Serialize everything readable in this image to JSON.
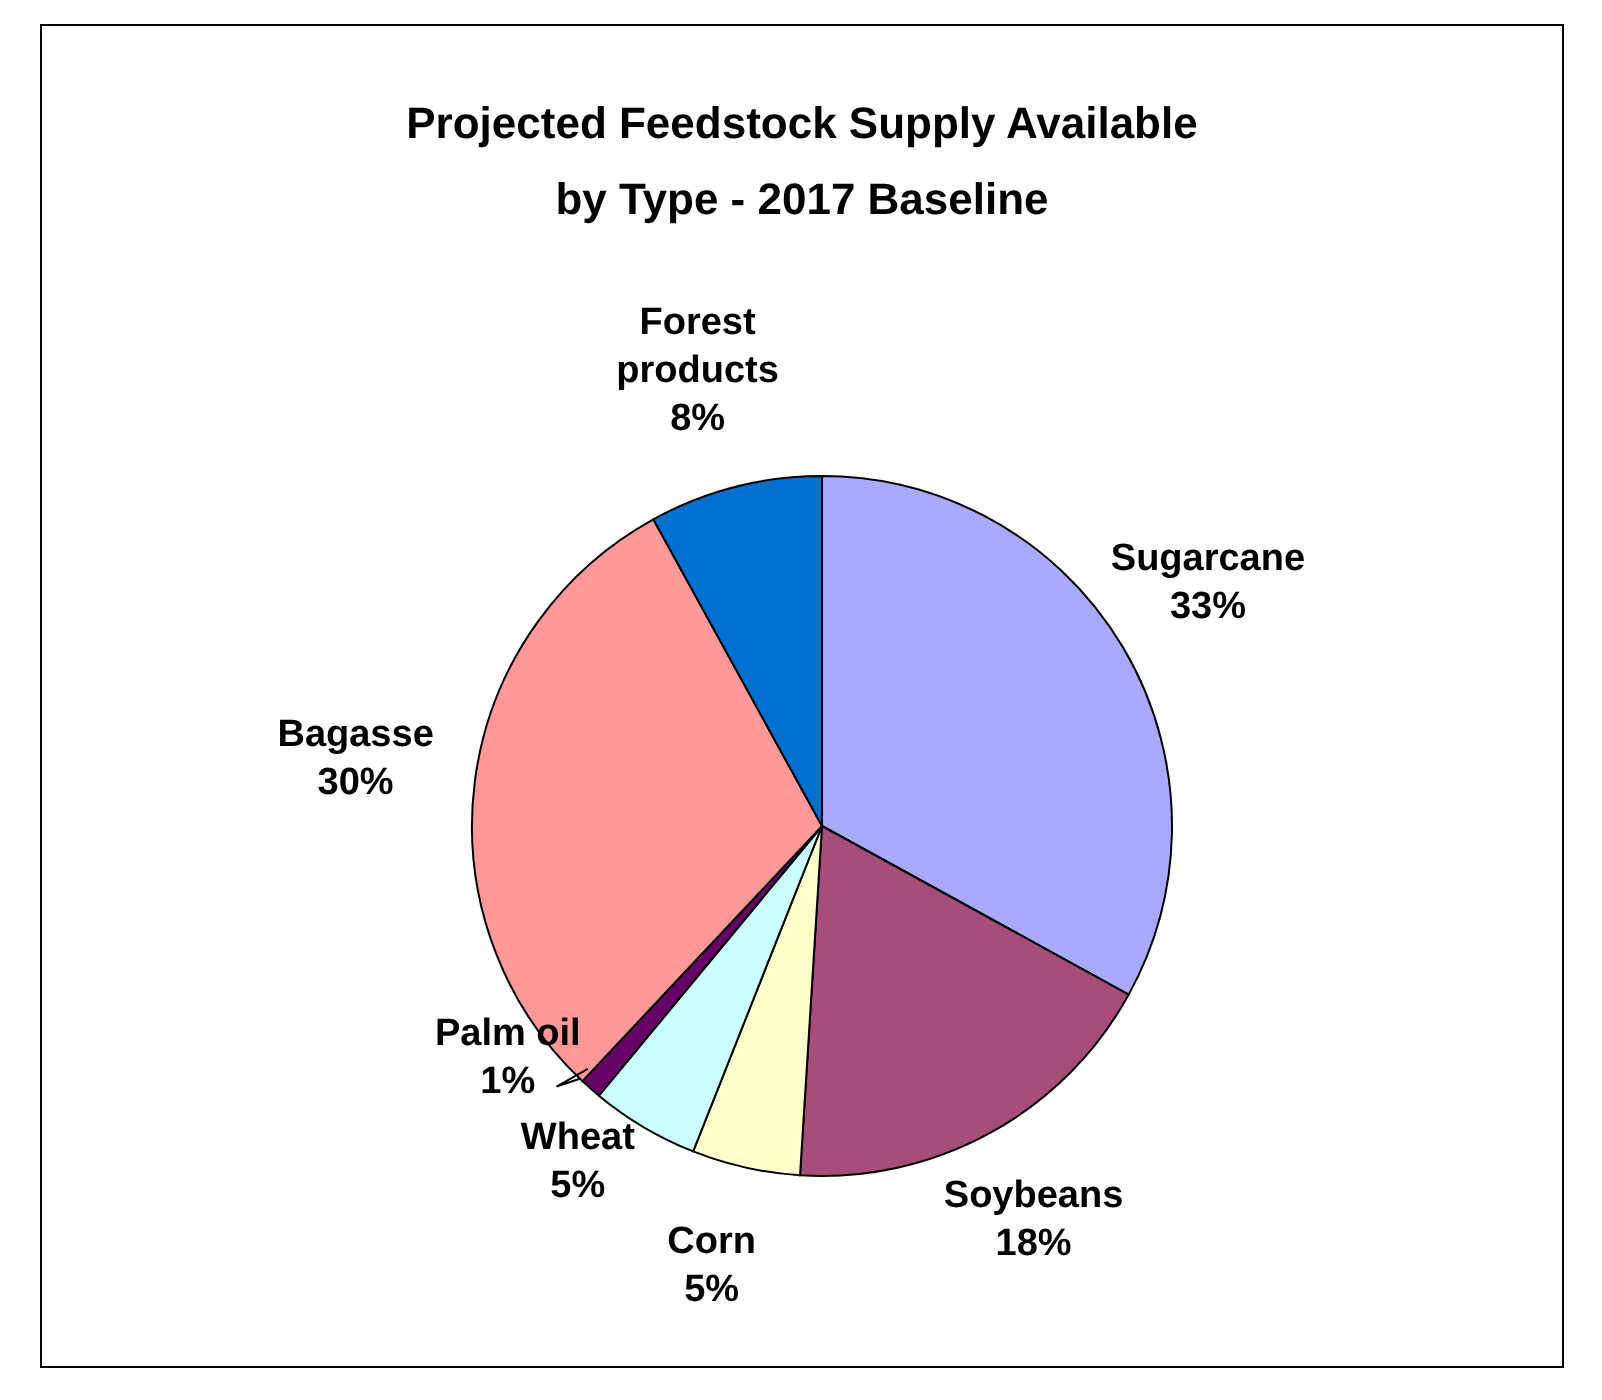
{
  "chart_data": {
    "type": "pie",
    "title": "Projected Feedstock Supply Available by Type - 2017 Baseline",
    "categories": [
      "Sugarcane",
      "Soybeans",
      "Corn",
      "Wheat",
      "Palm oil",
      "Bagasse",
      "Forest products"
    ],
    "values": [
      33,
      18,
      5,
      5,
      1,
      30,
      8
    ],
    "value_labels": [
      "33%",
      "18%",
      "5%",
      "5%",
      "1%",
      "30%",
      "8%"
    ],
    "colors": [
      "#a9a9ff",
      "#a64d79",
      "#ffffcc",
      "#ccffff",
      "#660066",
      "#ff9999",
      "#0070d0"
    ],
    "legend": false
  }
}
